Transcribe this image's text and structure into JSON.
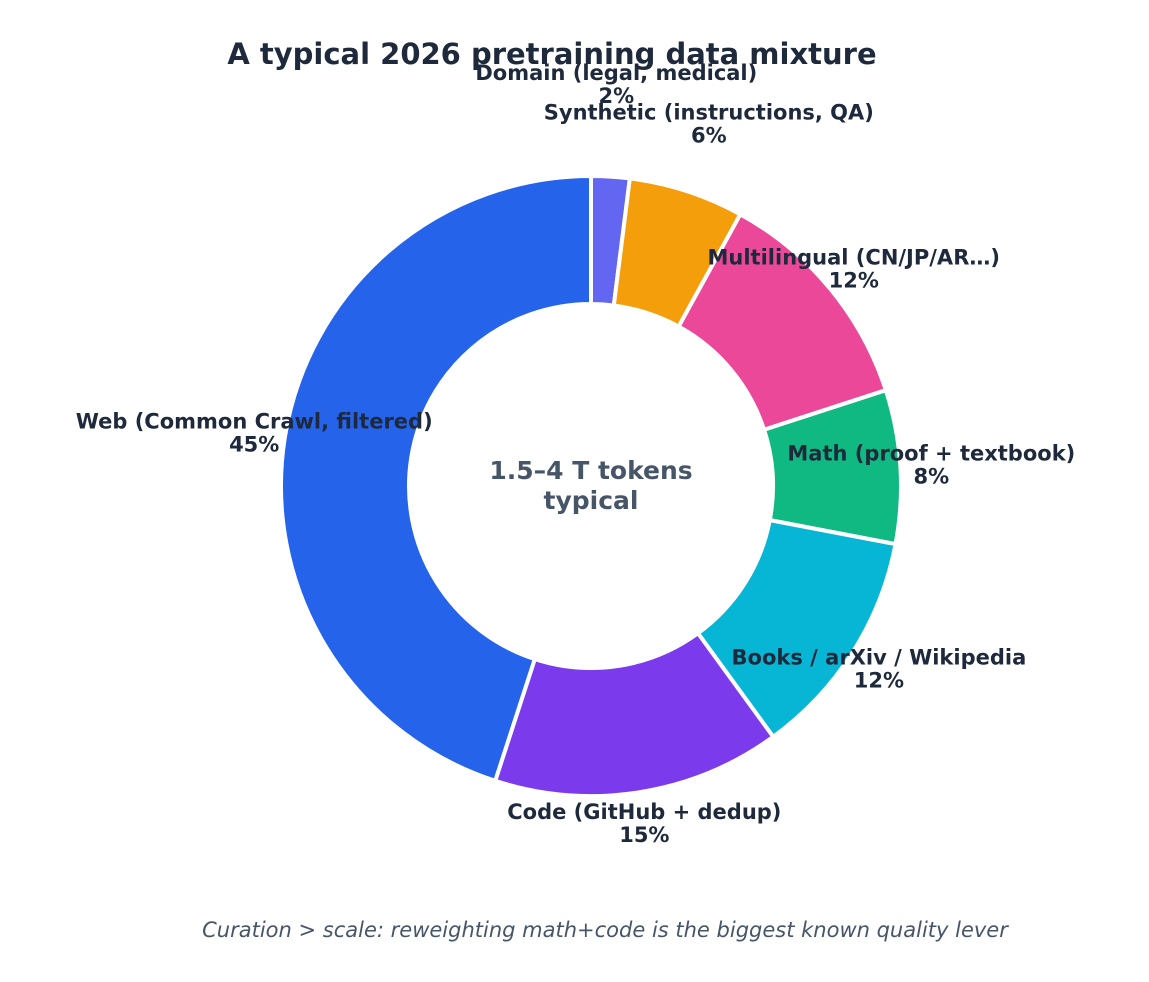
{
  "chart_data": {
    "type": "pie",
    "title": "A typical 2026 pretraining data mixture",
    "center_text": [
      "1.5–4 T tokens",
      "typical"
    ],
    "footnote": "Curation > scale: reweighting math+code is the biggest known quality lever",
    "slices": [
      {
        "label": "Domain (legal, medical)",
        "value": 2,
        "value_label": "2%",
        "color": "#6366f1"
      },
      {
        "label": "Synthetic (instructions, QA)",
        "value": 6,
        "value_label": "6%",
        "color": "#f59e0b"
      },
      {
        "label": "Multilingual (CN/JP/AR…)",
        "value": 12,
        "value_label": "12%",
        "color": "#ec4899"
      },
      {
        "label": "Math (proof + textbook)",
        "value": 8,
        "value_label": "8%",
        "color": "#10b981"
      },
      {
        "label": "Books / arXiv / Wikipedia",
        "value": 12,
        "value_label": "12%",
        "color": "#06b6d4"
      },
      {
        "label": "Code (GitHub + dedup)",
        "value": 15,
        "value_label": "15%",
        "color": "#7c3aed"
      },
      {
        "label": "Web (Common Crawl, filtered)",
        "value": 45,
        "value_label": "45%",
        "color": "#2563eb"
      }
    ],
    "start_angle": "12 o'clock",
    "direction": "clockwise",
    "donut": true
  }
}
